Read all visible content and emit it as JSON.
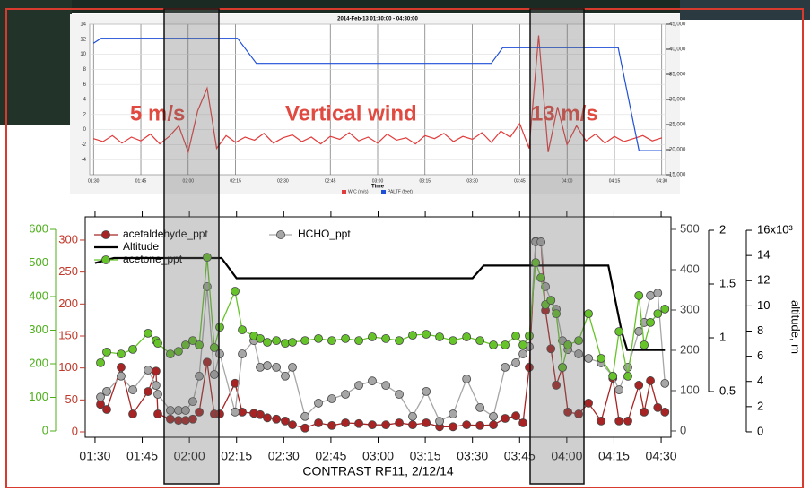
{
  "chart_data": [
    {
      "type": "line",
      "title": "2014-Feb-13 01:30:00 - 04:30:00",
      "x_label": "Time",
      "annotations": [
        "5 m/s",
        "Vertical wind",
        "13 m/s"
      ],
      "xlim": [
        1.48,
        4.52
      ],
      "xticks": [
        {
          "value": 1.5,
          "label": "01:30"
        },
        {
          "value": 1.75,
          "label": "01:45"
        },
        {
          "value": 2.0,
          "label": "02:00"
        },
        {
          "value": 2.25,
          "label": "02:15"
        },
        {
          "value": 2.5,
          "label": "02:30"
        },
        {
          "value": 2.75,
          "label": "02:45"
        },
        {
          "value": 3.0,
          "label": "03:00"
        },
        {
          "value": 3.25,
          "label": "03:15"
        },
        {
          "value": 3.5,
          "label": "03:30"
        },
        {
          "value": 3.75,
          "label": "03:45"
        },
        {
          "value": 4.0,
          "label": "04:00"
        },
        {
          "value": 4.25,
          "label": "04:15"
        },
        {
          "value": 4.5,
          "label": "04:30"
        }
      ],
      "ylim": [
        -6,
        14
      ],
      "yticks": [
        -4,
        -2,
        0,
        2,
        4,
        6,
        8,
        10,
        12,
        14
      ],
      "y2lim": [
        15000,
        45000
      ],
      "y2ticks": [
        {
          "value": 15000,
          "label": "15,000"
        },
        {
          "value": 20000,
          "label": "20,000"
        },
        {
          "value": 25000,
          "label": "25,000"
        },
        {
          "value": 30000,
          "label": "30,000"
        },
        {
          "value": 35000,
          "label": "35,000"
        },
        {
          "value": 40000,
          "label": "40,000"
        },
        {
          "value": 45000,
          "label": "45,000"
        }
      ],
      "grid": true,
      "series": [
        {
          "name": "WIC (m/s)",
          "color": "#e23b3b",
          "x": [
            1.5,
            1.55,
            1.6,
            1.65,
            1.7,
            1.75,
            1.8,
            1.85,
            1.9,
            1.95,
            2.0,
            2.05,
            2.1,
            2.15,
            2.2,
            2.25,
            2.3,
            2.35,
            2.4,
            2.45,
            2.5,
            2.55,
            2.6,
            2.65,
            2.7,
            2.75,
            2.8,
            2.85,
            2.9,
            2.95,
            3.0,
            3.05,
            3.1,
            3.15,
            3.2,
            3.25,
            3.3,
            3.35,
            3.4,
            3.45,
            3.5,
            3.55,
            3.6,
            3.65,
            3.7,
            3.75,
            3.8,
            3.85,
            3.9,
            3.95,
            4.0,
            4.05,
            4.1,
            4.15,
            4.2,
            4.25,
            4.3,
            4.35,
            4.4,
            4.45,
            4.5
          ],
          "values": [
            -1.2,
            -1.6,
            -0.8,
            -1.8,
            -1.0,
            -1.5,
            -0.6,
            -1.9,
            -0.9,
            0.5,
            -3.0,
            2.5,
            5.5,
            -2.5,
            -0.8,
            -1.7,
            -1.0,
            -1.4,
            -0.5,
            -1.8,
            -1.1,
            -0.7,
            -1.6,
            -1.0,
            -1.9,
            -0.9,
            -1.3,
            -0.4,
            -1.5,
            -1.0,
            -1.8,
            -0.6,
            -1.4,
            -1.1,
            -1.9,
            -0.8,
            -1.2,
            -0.5,
            -1.6,
            -0.9,
            -1.3,
            -0.4,
            -1.7,
            -0.2,
            -1.0,
            0.8,
            -2.5,
            12.5,
            -3.0,
            3.0,
            -2.0,
            0.5,
            -1.5,
            -0.6,
            -1.8,
            -0.9,
            -1.6,
            -1.2,
            -0.8,
            -1.5,
            -1.1
          ]
        },
        {
          "name": "PALTF (feet)",
          "color": "#1f4fd8",
          "axis": "y2",
          "x": [
            1.5,
            1.54,
            2.26,
            2.36,
            3.6,
            3.66,
            4.27,
            4.38,
            4.5
          ],
          "values": [
            41200,
            42200,
            42200,
            37200,
            37200,
            40300,
            40300,
            19800,
            19800
          ]
        }
      ]
    },
    {
      "type": "line",
      "x_label": "CONTRAST RF11, 2/12/14",
      "legend": "upper left",
      "xlim": [
        1.448,
        4.552
      ],
      "xticks": [
        {
          "value": 1.5,
          "label": "01:30"
        },
        {
          "value": 1.75,
          "label": "01:45"
        },
        {
          "value": 2.0,
          "label": "02:00"
        },
        {
          "value": 2.25,
          "label": "02:15"
        },
        {
          "value": 2.5,
          "label": "02:30"
        },
        {
          "value": 2.75,
          "label": "02:45"
        },
        {
          "value": 3.0,
          "label": "03:00"
        },
        {
          "value": 3.25,
          "label": "03:15"
        },
        {
          "value": 3.5,
          "label": "03:30"
        },
        {
          "value": 3.75,
          "label": "03:45"
        },
        {
          "value": 4.0,
          "label": "04:00"
        },
        {
          "value": 4.25,
          "label": "04:15"
        },
        {
          "value": 4.5,
          "label": "04:30"
        }
      ],
      "axes": [
        {
          "ylim": [
            -8.4,
            336.4
          ],
          "yticks": [
            0,
            50,
            100,
            150,
            200,
            250,
            300
          ],
          "color": "#c0392b"
        },
        {
          "ylim": [
            -18.7,
            637.3
          ],
          "yticks": [
            0,
            100,
            200,
            300,
            400,
            500,
            600
          ],
          "color": "#4caf1a"
        },
        {
          "ylim": [
            -15.6,
            531.1
          ],
          "yticks": [
            0,
            100,
            200,
            300,
            400,
            500
          ],
          "color": "#444444"
        },
        {
          "ylim": [
            0.075,
            2.125
          ],
          "yticks": [
            0.5,
            1.0,
            1.5,
            2.0
          ],
          "color": "#000000"
        },
        {
          "ylim": [
            -0.43,
            17.07
          ],
          "yticks": [
            0,
            2,
            4,
            6,
            8,
            10,
            12,
            14,
            {
              "value": 16,
              "label": "16x10³"
            }
          ],
          "color": "#000000",
          "label": "altitude, m"
        }
      ],
      "x": [
        1.529,
        1.562,
        1.638,
        1.7,
        1.781,
        1.823,
        1.833,
        1.899,
        1.942,
        1.98,
        2.018,
        2.052,
        2.094,
        2.132,
        2.161,
        2.242,
        2.28,
        2.342,
        2.375,
        2.413,
        2.461,
        2.508,
        2.546,
        2.613,
        2.684,
        2.755,
        2.827,
        2.898,
        2.969,
        3.041,
        3.112,
        3.183,
        3.255,
        3.326,
        3.397,
        3.469,
        3.54,
        3.611,
        3.673,
        3.73,
        3.768,
        3.801,
        3.835,
        3.863,
        3.887,
        3.916,
        3.944,
        3.977,
        4.006,
        4.063,
        4.115,
        4.182,
        4.244,
        4.277,
        4.324,
        4.382,
        4.41,
        4.443,
        4.482,
        4.52
      ],
      "series": [
        {
          "name": "acetaldehyde_ppt",
          "color": "#a82424",
          "axis": 0,
          "marker": "circle",
          "values": [
            43,
            35,
            101,
            28,
            63,
            95,
            28,
            20,
            18,
            18,
            20,
            31,
            109,
            28,
            28,
            76,
            31,
            29,
            27,
            22,
            20,
            17,
            11,
            6,
            14,
            10,
            14,
            13,
            11,
            11,
            14,
            11,
            14,
            8,
            8,
            11,
            10,
            11,
            21,
            25,
            14,
            101,
            298,
            297,
            190,
            130,
            73,
            101,
            31,
            28,
            45,
            17,
            84,
            17,
            17,
            73,
            31,
            80,
            38,
            31
          ]
        },
        {
          "name": "HCHO_ppt",
          "color": "#a6a6a6",
          "axis": 2,
          "marker": "circle",
          "values": [
            84,
            98,
            136,
            102,
            151,
            113,
            91,
            51,
            51,
            51,
            73,
            136,
            358,
            140,
            191,
            47,
            191,
            224,
            158,
            162,
            158,
            136,
            158,
            36,
            69,
            80,
            91,
            113,
            124,
            113,
            91,
            36,
            98,
            24,
            42,
            129,
            58,
            36,
            158,
            169,
            191,
            209,
            469,
            469,
            358,
            324,
            302,
            224,
            202,
            191,
            180,
            169,
            136,
            102,
            158,
            247,
            269,
            336,
            342,
            118
          ]
        },
        {
          "name": "Altitude",
          "color": "#000000",
          "axis": 4,
          "x": [
            1.5,
            1.6,
            2.17,
            2.25,
            3.5,
            3.56,
            4.22,
            4.29,
            4.32,
            4.52
          ],
          "values": [
            13.4,
            13.8,
            13.8,
            12.2,
            12.2,
            13.2,
            13.2,
            8.0,
            6.5,
            6.5
          ]
        },
        {
          "name": "acetone_ppt",
          "color": "#66c42a",
          "axis": 1,
          "marker": "circle",
          "values": [
            203,
            235,
            229,
            243,
            291,
            269,
            261,
            229,
            237,
            256,
            269,
            256,
            517,
            248,
            309,
            416,
            301,
            283,
            275,
            264,
            269,
            261,
            264,
            269,
            275,
            269,
            275,
            269,
            280,
            275,
            269,
            285,
            288,
            280,
            269,
            280,
            269,
            256,
            256,
            283,
            256,
            283,
            501,
            456,
            376,
            389,
            349,
            189,
            256,
            269,
            349,
            216,
            163,
            296,
            163,
            403,
            256,
            323,
            349,
            363
          ]
        }
      ]
    }
  ]
}
